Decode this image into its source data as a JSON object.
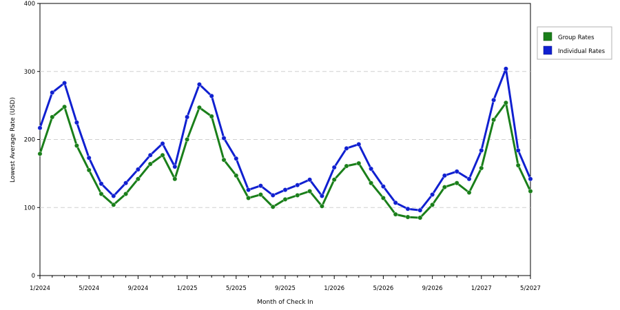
{
  "chart_data": {
    "type": "line",
    "title": "",
    "xlabel": "Month of Check In",
    "ylabel": "Lowest Average Rate (USD)",
    "ylim": [
      0,
      400
    ],
    "yticks": [
      "0",
      "100",
      "200",
      "300",
      "400"
    ],
    "xticks": [
      "1/2024",
      "5/2024",
      "9/2024",
      "1/2025",
      "5/2025",
      "9/2025",
      "1/2026",
      "5/2026",
      "9/2026",
      "1/2027",
      "5/2027"
    ],
    "grid": true,
    "legend_position": "right",
    "x": [
      "1/2024",
      "2/2024",
      "3/2024",
      "4/2024",
      "5/2024",
      "6/2024",
      "7/2024",
      "8/2024",
      "9/2024",
      "10/2024",
      "11/2024",
      "12/2024",
      "1/2025",
      "2/2025",
      "3/2025",
      "4/2025",
      "5/2025",
      "6/2025",
      "7/2025",
      "8/2025",
      "9/2025",
      "10/2025",
      "11/2025",
      "12/2025",
      "1/2026",
      "2/2026",
      "3/2026",
      "4/2026",
      "5/2026",
      "6/2026",
      "7/2026",
      "8/2026",
      "9/2026",
      "10/2026",
      "11/2026",
      "12/2026",
      "1/2027",
      "2/2027",
      "3/2027",
      "4/2027",
      "5/2027"
    ],
    "series": [
      {
        "name": "Group Rates",
        "color": "#1a7f1a",
        "values": [
          179,
          233,
          248,
          191,
          155,
          120,
          104,
          120,
          142,
          164,
          177,
          142,
          200,
          247,
          234,
          170,
          147,
          114,
          119,
          101,
          112,
          118,
          124,
          102,
          141,
          161,
          165,
          136,
          114,
          90,
          86,
          85,
          104,
          130,
          136,
          122,
          158,
          229,
          254,
          162,
          124
        ]
      },
      {
        "name": "Individual Rates",
        "color": "#1020d0",
        "values": [
          217,
          269,
          283,
          225,
          173,
          135,
          117,
          136,
          156,
          177,
          194,
          160,
          233,
          281,
          264,
          202,
          172,
          126,
          132,
          118,
          126,
          133,
          141,
          117,
          159,
          187,
          193,
          157,
          131,
          107,
          98,
          96,
          119,
          147,
          153,
          142,
          184,
          258,
          304,
          184,
          142
        ]
      }
    ]
  }
}
